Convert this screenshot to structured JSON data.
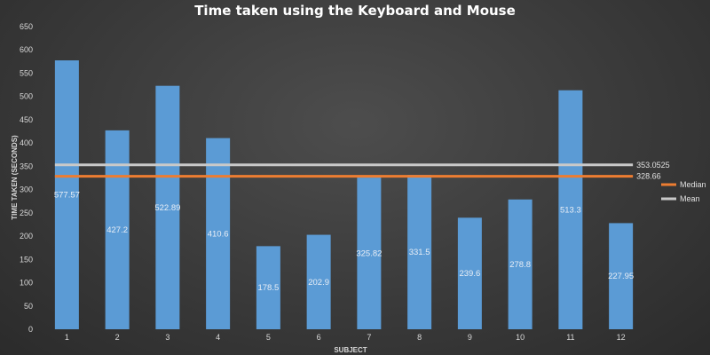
{
  "chart_data": {
    "type": "bar",
    "title": "Time taken using the Keyboard and Mouse",
    "xlabel": "SUBJECT",
    "ylabel": "TIME TAKEN (SECONDS)",
    "ylim": [
      0,
      650
    ],
    "ytick_step": 50,
    "categories": [
      "1",
      "2",
      "3",
      "4",
      "5",
      "6",
      "7",
      "8",
      "9",
      "10",
      "11",
      "12"
    ],
    "values": [
      577.57,
      427.2,
      522.89,
      410.6,
      178.5,
      202.9,
      325.82,
      331.5,
      239.6,
      278.8,
      513.3,
      227.95
    ],
    "data_labels": [
      "577.57",
      "427.2",
      "522.89",
      "410.6",
      "178.5",
      "202.9",
      "325.82",
      "331.5",
      "239.6",
      "278.8",
      "513.3",
      "227.95"
    ],
    "reference_lines": [
      {
        "name": "Mean",
        "value": 353.0525,
        "label": "353.0525",
        "color": "#c9c9c9"
      },
      {
        "name": "Median",
        "value": 328.66,
        "label": "328.66",
        "color": "#ed7d31"
      }
    ],
    "legend": {
      "placement": "right",
      "entries": [
        "Median",
        "Mean"
      ]
    },
    "bar_color": "#5b9bd5",
    "grid": false
  }
}
